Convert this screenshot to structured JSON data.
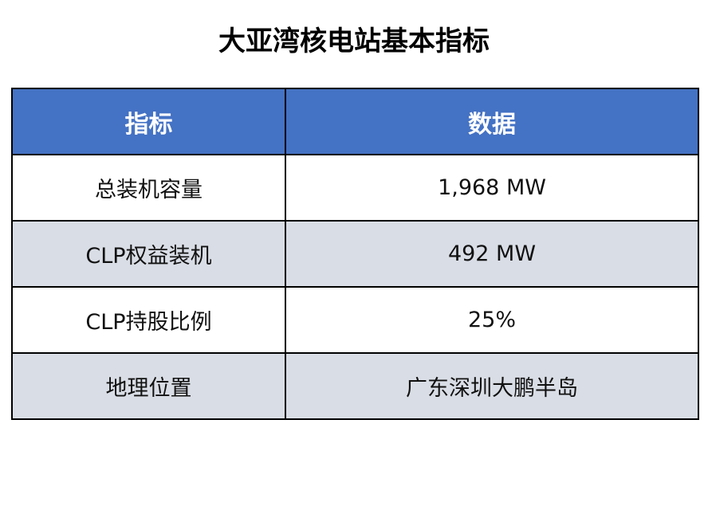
{
  "title": "大亚湾核电站基本指标",
  "table": {
    "headers": [
      "指标",
      "数据"
    ],
    "rows": [
      [
        "总装机容量",
        "1,968 MW"
      ],
      [
        "CLP权益装机",
        "492 MW"
      ],
      [
        "CLP持股比例",
        "25%"
      ],
      [
        "地理位置",
        "广东深圳大鹏半岛"
      ]
    ]
  },
  "colors": {
    "header_bg": "#4472c4",
    "header_text": "#ffffff",
    "stripe_bg": "#d9dde5",
    "border": "#000000"
  }
}
